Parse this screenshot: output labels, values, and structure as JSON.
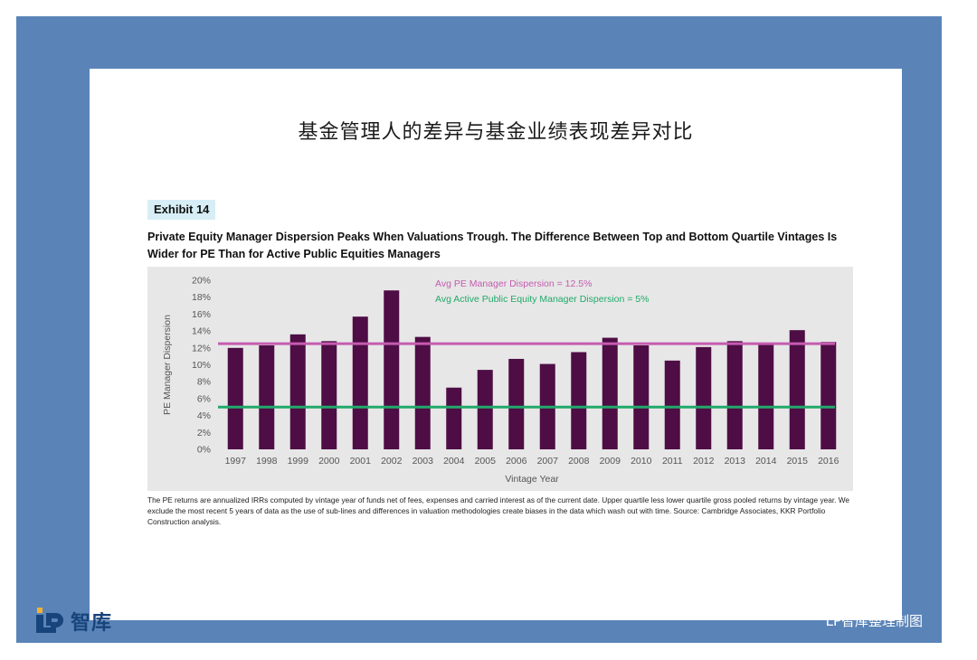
{
  "page": {
    "main_title": "基金管理人的差异与基金业绩表现差异对比",
    "exhibit": "Exhibit 14",
    "subtitle": "Private Equity Manager Dispersion Peaks When Valuations Trough. The Difference Between Top and Bottom Quartile Vintages Is Wider for PE Than for Active Public Equities Managers",
    "footnote": "The PE returns are annualized IRRs computed by vintage year of funds net of fees, expenses and carried interest as of the current date. Upper quartile less lower quartile gross pooled returns by vintage year. We exclude the most recent 5 years of data as the use of sub-lines and differences in valuation methodologies create biases in the data which wash out with time. Source: Cambridge Associates, KKR Portfolio Construction analysis.",
    "logo_text": "智库",
    "credit": "LP智库整理制图"
  },
  "colors": {
    "frame": "#5a84b8",
    "bar": "#4e0d45",
    "pe_line": "#c45cb0",
    "public_line": "#22a96a",
    "chart_bg": "#e7e7e7",
    "logo": "#17447a"
  },
  "chart_data": {
    "type": "bar",
    "xlabel": "Vintage Year",
    "ylabel": "PE Manager Dispersion",
    "ylim": [
      0,
      20
    ],
    "y_ticks": [
      "0%",
      "2%",
      "4%",
      "6%",
      "8%",
      "10%",
      "12%",
      "14%",
      "16%",
      "18%",
      "20%"
    ],
    "grid": false,
    "categories": [
      "1997",
      "1998",
      "1999",
      "2000",
      "2001",
      "2002",
      "2003",
      "2004",
      "2005",
      "2006",
      "2007",
      "2008",
      "2009",
      "2010",
      "2011",
      "2012",
      "2013",
      "2014",
      "2015",
      "2016"
    ],
    "values": [
      12.0,
      12.3,
      13.6,
      12.8,
      15.7,
      18.8,
      13.3,
      7.3,
      9.4,
      10.7,
      10.1,
      11.5,
      13.2,
      12.3,
      10.5,
      12.1,
      12.8,
      12.4,
      14.1,
      12.7
    ],
    "reference_lines": [
      {
        "name": "Avg PE Manager Dispersion = 12.5%",
        "value": 12.5,
        "color": "#c45cb0"
      },
      {
        "name": "Avg Active Public Equity Manager Dispersion = 5%",
        "value": 5,
        "color": "#22a96a"
      }
    ]
  }
}
